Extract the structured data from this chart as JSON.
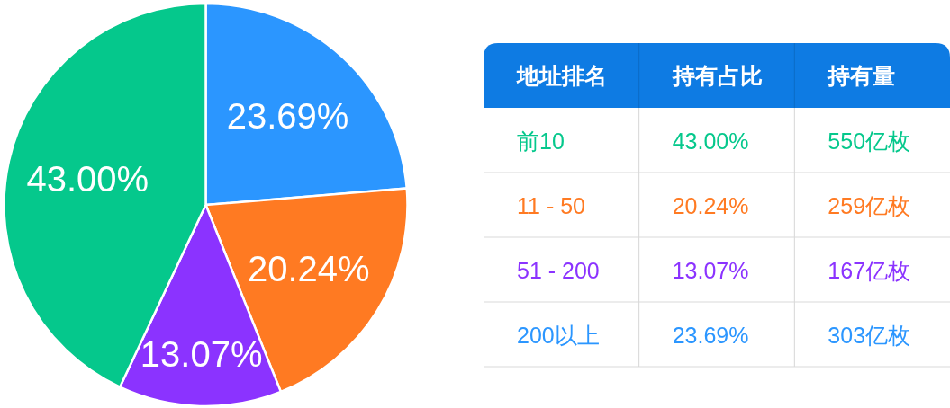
{
  "chart_data": [
    {
      "type": "pie",
      "categories": [
        null,
        null,
        null,
        null
      ],
      "values": [
        23.69,
        20.24,
        13.07,
        43.0
      ],
      "colors": [
        "#2b96ff",
        "#ff7a22",
        "#8b33ff",
        "#05c88c"
      ],
      "value_labels": [
        "23.69%",
        "20.24%",
        "13.07%",
        "43.00%"
      ]
    },
    {
      "type": "other",
      "xlabel": "地址排名",
      "categories": [
        "前10",
        "11 - 50",
        "51 - 200",
        "200以上"
      ],
      "colors": [
        "#05c88c",
        "#ff7a22",
        "#8b33ff",
        "#2b96ff"
      ],
      "series": [
        {
          "name": "持有占比",
          "values": [
            43.0,
            20.24,
            13.07,
            23.69
          ],
          "value_labels": [
            "43.00%",
            "20.24%",
            "13.07%",
            "23.69%"
          ]
        },
        {
          "name": "持有量",
          "values": [
            550,
            259,
            167,
            303
          ],
          "value_labels": [
            "550亿枚",
            "259亿枚",
            "167亿枚",
            "303亿枚"
          ]
        }
      ]
    }
  ]
}
